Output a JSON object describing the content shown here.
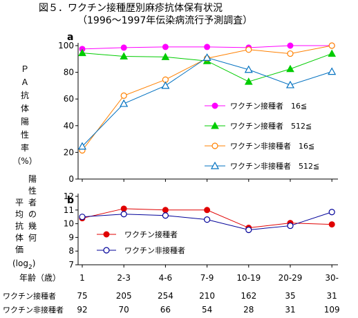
{
  "title": "図５．ワクチン接種歴別麻疹抗体保有状況",
  "subtitle": "（1996～1997年伝染病流行予測調査）",
  "xlabel": "年齢（歳）",
  "panel_a_ylabel": [
    "Ｐ",
    "Ａ",
    "抗",
    "体",
    "陽",
    "性",
    "率",
    "（%）"
  ],
  "panel_b_ylabel_left": [
    "平",
    "均",
    "抗",
    "体",
    "価"
  ],
  "panel_b_ylabel_right": [
    "陽",
    "性",
    "者",
    "の",
    "幾",
    "何"
  ],
  "panel_b_log_label": "(log",
  "panel_b_log_sub": "2",
  "panel_b_log_close": ")",
  "counts": {
    "rows": [
      {
        "label": "ワクチン接種者",
        "values": [
          "75",
          "205",
          "254",
          "210",
          "162",
          "35",
          "31"
        ]
      },
      {
        "label": "ワクチン非接種者",
        "values": [
          "92",
          "70",
          "66",
          "54",
          "28",
          "31",
          "109"
        ]
      }
    ]
  },
  "colors": {
    "magenta": "#ff00ff",
    "green": "#00cc00",
    "orange": "#ff8000",
    "blue": "#0070c0",
    "red": "#e00000",
    "navy": "#000099"
  },
  "chart_data": [
    {
      "panel": "a",
      "type": "line",
      "categories": [
        "1",
        "2-3",
        "4-6",
        "7-9",
        "10-19",
        "20-29",
        "30-"
      ],
      "ylim": [
        0,
        100
      ],
      "yticks": [
        0,
        20,
        40,
        60,
        80,
        100
      ],
      "series": [
        {
          "name": "ワクチン接種者　16≦",
          "marker": "circle-filled",
          "color": "#ff00ff",
          "values": [
            97.5,
            98.5,
            99,
            99,
            98.5,
            100,
            100
          ]
        },
        {
          "name": "ワクチン接種者　512≦",
          "marker": "triangle-filled",
          "color": "#00cc00",
          "values": [
            94.5,
            92,
            91.5,
            88.5,
            73,
            82.5,
            94
          ]
        },
        {
          "name": "ワクチン非接種者　16≦",
          "marker": "circle-open",
          "color": "#ff8000",
          "values": [
            21.5,
            62.5,
            74.5,
            90.5,
            97,
            94,
            100
          ]
        },
        {
          "name": "ワクチン非接種者　512≦",
          "marker": "triangle-open",
          "color": "#0070c0",
          "values": [
            24.5,
            56.5,
            70,
            91,
            82,
            70.5,
            80.5
          ]
        }
      ]
    },
    {
      "panel": "b",
      "type": "line",
      "categories": [
        "1",
        "2-3",
        "4-6",
        "7-9",
        "10-19",
        "20-29",
        "30-"
      ],
      "ylim": [
        7,
        12
      ],
      "yticks": [
        7,
        8,
        9,
        10,
        11,
        12
      ],
      "series": [
        {
          "name": "ワクチン接種者",
          "marker": "circle-filled",
          "color": "#e00000",
          "values": [
            10.4,
            11.1,
            11,
            11,
            9.7,
            10.05,
            9.95
          ]
        },
        {
          "name": "ワクチン非接種者",
          "marker": "circle-open",
          "color": "#000099",
          "values": [
            10.5,
            10.7,
            10.6,
            10.3,
            9.55,
            9.85,
            10.85
          ]
        }
      ]
    }
  ]
}
